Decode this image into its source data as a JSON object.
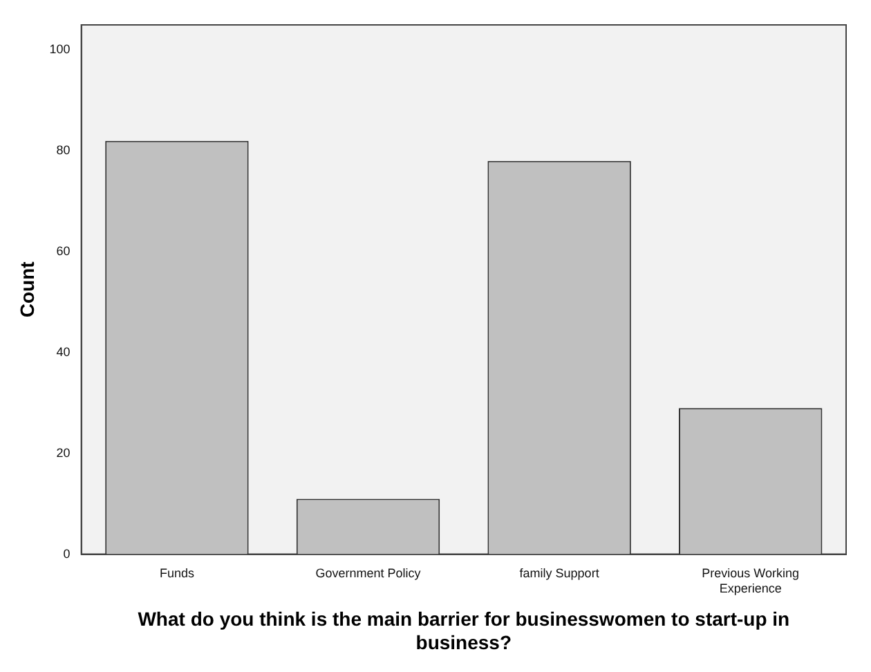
{
  "chart_data": {
    "type": "bar",
    "categories": [
      "Funds",
      "Government Policy",
      "family Support",
      "Previous Working Experience"
    ],
    "values": [
      82,
      11,
      78,
      29
    ],
    "color": "#c0c0c0",
    "xlabel": "What do you think is the main barrier for businesswomen to start-up in business?",
    "ylabel": "Count",
    "ylim": [
      0,
      105
    ],
    "yticks": [
      0,
      20,
      40,
      60,
      80,
      100
    ],
    "grid": false,
    "legend": false
  }
}
